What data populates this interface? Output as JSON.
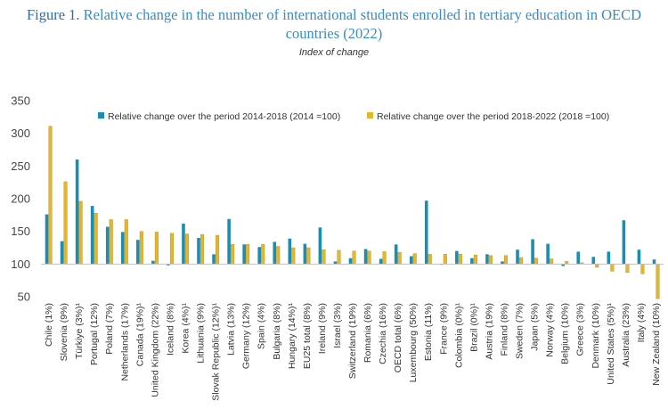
{
  "figure": {
    "label": "Figure 1.",
    "title": "Relative change in the number of international students enrolled in tertiary education in OECD countries (2022)",
    "subtitle": "Index of change"
  },
  "colors": {
    "series1": "#1b8db3",
    "series2": "#e2b72f",
    "axis": "#bfbfbf",
    "grid": "#e6e6e6"
  },
  "chart_data": {
    "type": "bar",
    "title": "Relative change in the number of international students enrolled in tertiary education in OECD countries (2022)",
    "ylabel": "Index of change",
    "ylim": [
      50,
      350
    ],
    "yticks": [
      50,
      100,
      150,
      200,
      250,
      300,
      350
    ],
    "baseline": 100,
    "grid": false,
    "legend_position": "top-right",
    "categories": [
      "Chile (1%)",
      "Slovenia (9%)",
      "Türkiye (3%)¹",
      "Portugal (12%)",
      "Poland (7%)",
      "Netherlands (17%)",
      "Canada (19%)¹",
      "United Kingdom (22%)",
      "Iceland (8%)",
      "Korea (4%)¹",
      "Lithuania (9%)",
      "Slovak Republic (12%)¹",
      "Latvia (13%)",
      "Germany (12%)",
      "Spain (4%)",
      "Bulgaria (8%)",
      "Hungary (14%)¹",
      "EU25 total (8%)",
      "Ireland (9%)",
      "Israel (3%)",
      "Switzerland (19%)",
      "Romania (6%)",
      "Czechia (16%)",
      "OECD total (6%)",
      "Luxembourg (50%)",
      "Estonia (11%)",
      "France (9%)",
      "Colombia (0%)¹",
      "Brazil (0%)¹",
      "Austria (19%)",
      "Finland (8%)",
      "Sweden (7%)",
      "Japan (5%)",
      "Norway (4%)",
      "Belgium (10%)",
      "Greece (3%)",
      "Denmark (10%)",
      "United States (5%)¹",
      "Australia (23%)",
      "Italy (4%)",
      "New Zealand (10%)"
    ],
    "series": [
      {
        "name": "Relative change over the period 2014-2018 (2014 =100)",
        "values": [
          176,
          135,
          260,
          189,
          157,
          149,
          137,
          105,
          98,
          162,
          140,
          115,
          169,
          130,
          126,
          134,
          139,
          131,
          156,
          104,
          109,
          123,
          108,
          130,
          112,
          197,
          99,
          120,
          109,
          115,
          104,
          122,
          138,
          131,
          97,
          119,
          111,
          119,
          167,
          122,
          107
        ]
      },
      {
        "name": "Relative change over the period 2018-2022 (2018 =100)",
        "values": [
          311,
          226,
          196,
          178,
          168,
          168,
          150,
          149,
          147,
          146,
          145,
          144,
          130,
          130,
          130,
          127,
          125,
          125,
          122,
          121,
          120,
          120,
          119,
          118,
          116,
          115,
          115,
          115,
          114,
          113,
          113,
          110,
          109,
          108,
          104,
          102,
          95,
          89,
          87,
          85,
          47
        ]
      }
    ]
  }
}
